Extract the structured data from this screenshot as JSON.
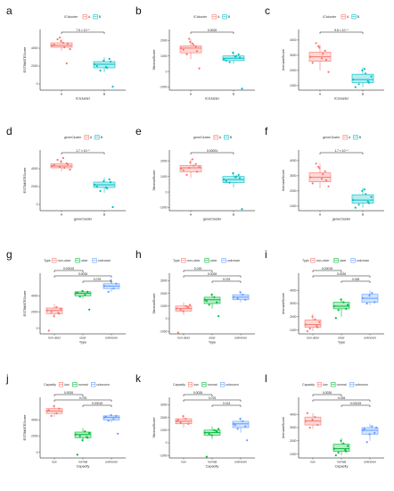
{
  "colors": {
    "A": "#f8766d",
    "B": "#00bfc4",
    "g1": "#f8766d",
    "g2": "#00ba38",
    "g3": "#619cff"
  },
  "chart_data": [
    {
      "panel": "a",
      "type": "box",
      "legend_title": "ICIcluster",
      "legend_position": "top",
      "xlabel": "ICIcluster",
      "ylabel": "ESTIMATEScore",
      "categories": [
        "A",
        "B"
      ],
      "yticks": [
        0,
        2000,
        4000
      ],
      "ylim": [
        -700,
        6100
      ],
      "boxes": [
        {
          "category": "A",
          "q1": 4100,
          "median": 4300,
          "q3": 4600,
          "min": 3700,
          "max": 5000
        },
        {
          "category": "B",
          "q1": 1800,
          "median": 2200,
          "q3": 2500,
          "min": 1300,
          "max": 3000
        }
      ],
      "points": [
        [
          [
            4300,
            4500,
            4100,
            4800,
            5000,
            4400,
            3900,
            2300,
            4600,
            5200
          ],
          [
            2200,
            2500,
            1800,
            2600,
            1500,
            2000,
            -300,
            2800,
            1900
          ]
        ]
      ],
      "comparisons": [
        {
          "pair": [
            "A",
            "B"
          ],
          "label": "7.5 × 10⁻⁵"
        }
      ]
    },
    {
      "panel": "b",
      "type": "box",
      "legend_title": "ICIcluster",
      "legend_position": "top",
      "xlabel": "ICIcluster",
      "ylabel": "StromalScore",
      "categories": [
        "A",
        "B"
      ],
      "yticks": [
        -1000,
        0,
        1000,
        2000
      ],
      "ylim": [
        -1200,
        2700
      ],
      "boxes": [
        {
          "category": "A",
          "q1": 1200,
          "median": 1500,
          "q3": 1650,
          "min": 800,
          "max": 2100
        },
        {
          "category": "B",
          "q1": 700,
          "median": 850,
          "q3": 1000,
          "min": 500,
          "max": 1300
        }
      ],
      "points": [
        [
          [
            1500,
            1300,
            1700,
            1900,
            1100,
            1400,
            200,
            1600,
            1800,
            2100
          ],
          [
            800,
            900,
            1000,
            1200,
            600,
            700,
            -1100,
            1100,
            950
          ]
        ]
      ],
      "comparisons": [
        {
          "pair": [
            "A",
            "B"
          ],
          "label": "0.0026"
        }
      ]
    },
    {
      "panel": "c",
      "type": "box",
      "legend_title": "ICIcluster",
      "legend_position": "top",
      "xlabel": "ICIcluster",
      "ylabel": "ImmuneScore",
      "categories": [
        "A",
        "B"
      ],
      "yticks": [
        1000,
        2000,
        3000,
        4000
      ],
      "ylim": [
        700,
        4700
      ],
      "boxes": [
        {
          "category": "A",
          "q1": 2600,
          "median": 2900,
          "q3": 3200,
          "min": 2000,
          "max": 3700
        },
        {
          "category": "B",
          "q1": 1200,
          "median": 1400,
          "q3": 1750,
          "min": 900,
          "max": 2200
        }
      ],
      "points": [
        [
          [
            2900,
            2700,
            3100,
            3500,
            3800,
            2500,
            1900,
            3300,
            2800,
            3600
          ],
          [
            1400,
            1200,
            1800,
            2000,
            1100,
            900,
            1600,
            1300,
            2100
          ]
        ]
      ],
      "comparisons": [
        {
          "pair": [
            "A",
            "B"
          ],
          "label": "9.8 × 10⁻⁵"
        }
      ]
    },
    {
      "panel": "d",
      "type": "box",
      "legend_title": "geneCluster",
      "legend_position": "top",
      "xlabel": "geneCluster",
      "ylabel": "ESTIMATEScore",
      "categories": [
        "A",
        "B"
      ],
      "yticks": [
        0,
        2000,
        4000
      ],
      "ylim": [
        -700,
        6100
      ],
      "boxes": [
        {
          "category": "A",
          "q1": 4100,
          "median": 4300,
          "q3": 4550,
          "min": 3700,
          "max": 5000
        },
        {
          "category": "B",
          "q1": 1900,
          "median": 2200,
          "q3": 2500,
          "min": 1300,
          "max": 3000
        }
      ],
      "points": [
        [
          [
            4300,
            4500,
            4100,
            4800,
            5000,
            4400,
            3900,
            4600,
            5200,
            4200
          ],
          [
            2200,
            2500,
            1800,
            2600,
            1500,
            2000,
            -300,
            2800,
            1900
          ]
        ]
      ],
      "comparisons": [
        {
          "pair": [
            "A",
            "B"
          ],
          "label": "1.7 × 10⁻⁵"
        }
      ]
    },
    {
      "panel": "e",
      "type": "box",
      "legend_title": "geneCluster",
      "legend_position": "top",
      "xlabel": "geneCluster",
      "ylabel": "StromalScore",
      "categories": [
        "A",
        "B"
      ],
      "yticks": [
        -1000,
        0,
        1000,
        2000
      ],
      "ylim": [
        -1200,
        2700
      ],
      "boxes": [
        {
          "category": "A",
          "q1": 1300,
          "median": 1550,
          "q3": 1700,
          "min": 900,
          "max": 2100
        },
        {
          "category": "B",
          "q1": 600,
          "median": 800,
          "q3": 1000,
          "min": 300,
          "max": 1300
        }
      ],
      "points": [
        [
          [
            1500,
            1300,
            1700,
            1900,
            1100,
            1400,
            1600,
            1800,
            2100,
            1550
          ],
          [
            800,
            900,
            1000,
            1200,
            600,
            700,
            -1100,
            1100,
            950
          ]
        ]
      ],
      "comparisons": [
        {
          "pair": [
            "A",
            "B"
          ],
          "label": "0.00024"
        }
      ]
    },
    {
      "panel": "f",
      "type": "box",
      "legend_title": "geneCluster",
      "legend_position": "top",
      "xlabel": "geneCluster",
      "ylabel": "ImmuneScore",
      "categories": [
        "A",
        "B"
      ],
      "yticks": [
        1000,
        2000,
        3000,
        4000
      ],
      "ylim": [
        700,
        4700
      ],
      "boxes": [
        {
          "category": "A",
          "q1": 2600,
          "median": 2900,
          "q3": 3200,
          "min": 2200,
          "max": 3800
        },
        {
          "category": "B",
          "q1": 1200,
          "median": 1400,
          "q3": 1750,
          "min": 900,
          "max": 2200
        }
      ],
      "points": [
        [
          [
            2900,
            2700,
            3100,
            3500,
            3800,
            2500,
            2300,
            3300,
            2800,
            3600
          ],
          [
            1400,
            1200,
            1800,
            2000,
            1100,
            900,
            1600,
            1300,
            2100
          ]
        ]
      ],
      "comparisons": [
        {
          "pair": [
            "A",
            "B"
          ],
          "label": "1.7 × 10⁻⁵"
        }
      ]
    },
    {
      "panel": "g",
      "type": "box",
      "legend_title": "Type",
      "legend_position": "top",
      "xlabel": "Type",
      "ylabel": "ESTIMATEScore",
      "categories": [
        "non-ulcer",
        "ulcer",
        "unknown"
      ],
      "yticks": [
        0,
        2000,
        4000
      ],
      "ylim": [
        -700,
        6800
      ],
      "boxes": [
        {
          "category": "non-ulcer",
          "q1": 1800,
          "median": 2200,
          "q3": 2500,
          "min": 1300,
          "max": 3000
        },
        {
          "category": "ulcer",
          "q1": 4000,
          "median": 4300,
          "q3": 4500,
          "min": 3700,
          "max": 4700
        },
        {
          "category": "unknown",
          "q1": 4900,
          "median": 5200,
          "q3": 5500,
          "min": 4500,
          "max": 5900
        }
      ],
      "points": [
        [
          [
            2200,
            1800,
            2600,
            1500,
            2000,
            -300,
            2400,
            1900
          ],
          [
            4300,
            4500,
            4100,
            4600,
            3900,
            4400,
            2300
          ],
          [
            5200,
            5500,
            4900,
            5900,
            4500
          ]
        ]
      ],
      "comparisons": [
        {
          "pair": [
            "non-ulcer",
            "ulcer"
          ],
          "label": "0.00015"
        },
        {
          "pair": [
            "non-ulcer",
            "unknown"
          ],
          "label": "0.0026"
        },
        {
          "pair": [
            "ulcer",
            "unknown"
          ],
          "label": "0.076"
        }
      ]
    },
    {
      "panel": "h",
      "type": "box",
      "legend_title": "Type",
      "legend_position": "top",
      "xlabel": "Type",
      "ylabel": "StromalScore",
      "categories": [
        "non-ulcer",
        "ulcer",
        "unknown"
      ],
      "yticks": [
        -1000,
        0,
        1000,
        2000,
        3000
      ],
      "ylim": [
        -1200,
        3600
      ],
      "boxes": [
        {
          "category": "non-ulcer",
          "q1": 600,
          "median": 800,
          "q3": 1000,
          "min": 300,
          "max": 1300
        },
        {
          "category": "ulcer",
          "q1": 1200,
          "median": 1500,
          "q3": 1700,
          "min": 800,
          "max": 2000
        },
        {
          "category": "unknown",
          "q1": 1500,
          "median": 1700,
          "q3": 1900,
          "min": 1300,
          "max": 2100
        }
      ],
      "points": [
        [
          [
            800,
            900,
            1000,
            600,
            700,
            -1100,
            1100,
            950
          ],
          [
            1500,
            1300,
            1700,
            1900,
            1100,
            1400,
            200
          ],
          [
            1700,
            1500,
            1900,
            2100,
            1600
          ]
        ]
      ],
      "comparisons": [
        {
          "pair": [
            "non-ulcer",
            "ulcer"
          ],
          "label": "0.015"
        },
        {
          "pair": [
            "non-ulcer",
            "unknown"
          ],
          "label": "0.0026"
        },
        {
          "pair": [
            "ulcer",
            "unknown"
          ],
          "label": "0.076"
        }
      ]
    },
    {
      "panel": "i",
      "type": "box",
      "legend_title": "Type",
      "legend_position": "top",
      "xlabel": "Type",
      "ylabel": "ImmuneScore",
      "categories": [
        "non-ulcer",
        "ulcer",
        "unknown"
      ],
      "yticks": [
        1000,
        2000,
        3000,
        4000
      ],
      "ylim": [
        700,
        5300
      ],
      "boxes": [
        {
          "category": "non-ulcer",
          "q1": 1200,
          "median": 1400,
          "q3": 1750,
          "min": 900,
          "max": 2200
        },
        {
          "category": "ulcer",
          "q1": 2600,
          "median": 2800,
          "q3": 3100,
          "min": 2000,
          "max": 3400
        },
        {
          "category": "unknown",
          "q1": 3100,
          "median": 3400,
          "q3": 3700,
          "min": 2900,
          "max": 4000
        }
      ],
      "points": [
        [
          [
            1400,
            1200,
            1800,
            2000,
            1100,
            900,
            1600,
            1300
          ],
          [
            2800,
            2600,
            3100,
            3300,
            2500,
            1900,
            2900
          ],
          [
            3400,
            3100,
            3800,
            3600,
            3000
          ]
        ]
      ],
      "comparisons": [
        {
          "pair": [
            "non-ulcer",
            "ulcer"
          ],
          "label": "0.00015"
        },
        {
          "pair": [
            "non-ulcer",
            "unknown"
          ],
          "label": "0.0026"
        },
        {
          "pair": [
            "ulcer",
            "unknown"
          ],
          "label": "0.026"
        }
      ]
    },
    {
      "panel": "j",
      "type": "box",
      "legend_title": "Capacity",
      "legend_position": "top",
      "xlabel": "Capacity",
      "ylabel": "ESTIMATEScore",
      "categories": [
        "low",
        "normal",
        "unknown"
      ],
      "yticks": [
        0,
        2000,
        4000
      ],
      "ylim": [
        -700,
        6800
      ],
      "boxes": [
        {
          "category": "low",
          "q1": 4800,
          "median": 5100,
          "q3": 5400,
          "min": 4400,
          "max": 5900
        },
        {
          "category": "normal",
          "q1": 1800,
          "median": 2200,
          "q3": 2500,
          "min": 1300,
          "max": 3000
        },
        {
          "category": "unknown",
          "q1": 4000,
          "median": 4300,
          "q3": 4500,
          "min": 3700,
          "max": 4700
        }
      ],
      "points": [
        [
          [
            5100,
            5400,
            4800,
            5700,
            4500,
            5200
          ],
          [
            2200,
            1800,
            2600,
            1500,
            2000,
            -300,
            2400,
            1900
          ],
          [
            4300,
            4500,
            4100,
            4600,
            3900,
            4400,
            2300
          ]
        ]
      ],
      "comparisons": [
        {
          "pair": [
            "low",
            "normal"
          ],
          "label": "0.0026"
        },
        {
          "pair": [
            "low",
            "unknown"
          ],
          "label": "0.076"
        },
        {
          "pair": [
            "normal",
            "unknown"
          ],
          "label": "0.00015"
        }
      ]
    },
    {
      "panel": "k",
      "type": "box",
      "legend_title": "Capacity",
      "legend_position": "top",
      "xlabel": "Capacity",
      "ylabel": "StromalScore",
      "categories": [
        "low",
        "normal",
        "unknown"
      ],
      "yticks": [
        -1000,
        0,
        1000,
        2000,
        3000
      ],
      "ylim": [
        -1200,
        3600
      ],
      "boxes": [
        {
          "category": "low",
          "q1": 1500,
          "median": 1700,
          "q3": 1900,
          "min": 1200,
          "max": 2200
        },
        {
          "category": "normal",
          "q1": 600,
          "median": 800,
          "q3": 1000,
          "min": 300,
          "max": 1300
        },
        {
          "category": "unknown",
          "q1": 1200,
          "median": 1500,
          "q3": 1700,
          "min": 800,
          "max": 2000
        }
      ],
      "points": [
        [
          [
            1700,
            1500,
            1900,
            2100,
            1600,
            1800
          ],
          [
            800,
            900,
            1000,
            600,
            700,
            -1100,
            1100,
            950
          ],
          [
            1500,
            1300,
            1700,
            1900,
            1100,
            1400,
            200
          ]
        ]
      ],
      "comparisons": [
        {
          "pair": [
            "low",
            "normal"
          ],
          "label": "0.0026"
        },
        {
          "pair": [
            "low",
            "unknown"
          ],
          "label": "0.076"
        },
        {
          "pair": [
            "normal",
            "unknown"
          ],
          "label": "0.013"
        }
      ]
    },
    {
      "panel": "l",
      "type": "box",
      "legend_title": "Capacity",
      "legend_position": "top",
      "xlabel": "Capacity",
      "ylabel": "ImmuneScore",
      "categories": [
        "low",
        "normal",
        "unknown"
      ],
      "yticks": [
        1000,
        2000,
        3000,
        4000
      ],
      "ylim": [
        700,
        5300
      ],
      "boxes": [
        {
          "category": "low",
          "q1": 3200,
          "median": 3500,
          "q3": 3800,
          "min": 2900,
          "max": 4100
        },
        {
          "category": "normal",
          "q1": 1200,
          "median": 1400,
          "q3": 1750,
          "min": 900,
          "max": 2200
        },
        {
          "category": "unknown",
          "q1": 2500,
          "median": 2800,
          "q3": 3000,
          "min": 2000,
          "max": 3300
        }
      ],
      "points": [
        [
          [
            3500,
            3200,
            3800,
            3600,
            3000,
            4100
          ],
          [
            1400,
            1200,
            1800,
            2000,
            1100,
            900,
            1600,
            1300
          ],
          [
            2800,
            2600,
            3100,
            2500,
            1900,
            2900,
            3000
          ]
        ]
      ],
      "comparisons": [
        {
          "pair": [
            "low",
            "normal"
          ],
          "label": "0.0026"
        },
        {
          "pair": [
            "low",
            "unknown"
          ],
          "label": "0.026"
        },
        {
          "pair": [
            "normal",
            "unknown"
          ],
          "label": "0.00015"
        }
      ]
    }
  ]
}
